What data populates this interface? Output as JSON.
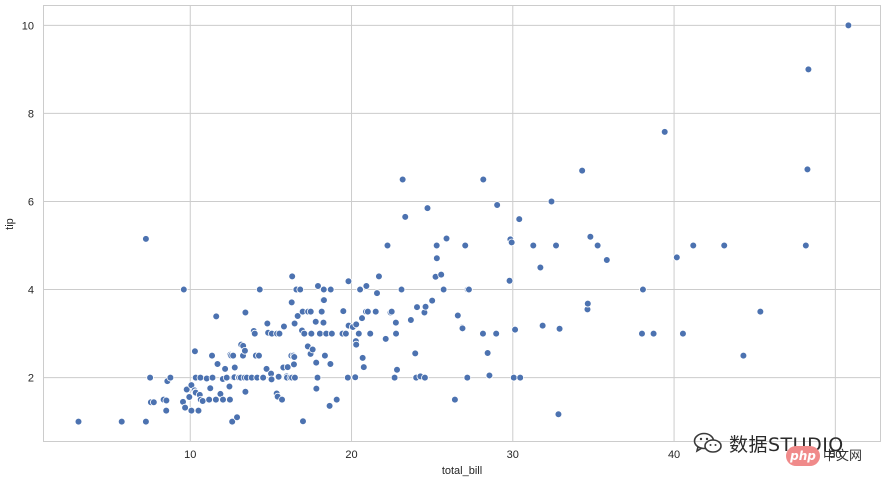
{
  "chart_data": {
    "type": "scatter",
    "title": "",
    "xlabel": "total_bill",
    "ylabel": "tip",
    "xlim": [
      0.9,
      52.8
    ],
    "ylim": [
      0.55,
      10.45
    ],
    "xticks": [
      10,
      20,
      30,
      40,
      50
    ],
    "yticks": [
      2,
      4,
      6,
      8,
      10
    ],
    "grid": true,
    "point_color": "#4c72b0",
    "series": [
      {
        "points": [
          [
            3.07,
            1.0
          ],
          [
            5.75,
            1.0
          ],
          [
            7.25,
            1.0
          ],
          [
            7.25,
            5.15
          ],
          [
            7.51,
            2.0
          ],
          [
            7.56,
            1.44
          ],
          [
            7.74,
            1.44
          ],
          [
            8.35,
            1.5
          ],
          [
            8.51,
            1.25
          ],
          [
            8.52,
            1.48
          ],
          [
            8.58,
            1.92
          ],
          [
            8.77,
            2.0
          ],
          [
            9.55,
            1.45
          ],
          [
            9.6,
            4.0
          ],
          [
            9.68,
            1.32
          ],
          [
            9.78,
            1.73
          ],
          [
            9.94,
            1.56
          ],
          [
            10.07,
            1.25
          ],
          [
            10.07,
            1.83
          ],
          [
            10.27,
            1.71
          ],
          [
            10.29,
            2.6
          ],
          [
            10.33,
            1.67
          ],
          [
            10.33,
            2.0
          ],
          [
            10.34,
            1.66
          ],
          [
            10.34,
            2.0
          ],
          [
            10.51,
            1.25
          ],
          [
            10.59,
            1.61
          ],
          [
            10.63,
            2.0
          ],
          [
            10.65,
            1.5
          ],
          [
            10.77,
            1.47
          ],
          [
            11.02,
            1.98
          ],
          [
            11.17,
            1.5
          ],
          [
            11.24,
            1.76
          ],
          [
            11.35,
            2.5
          ],
          [
            11.38,
            2.0
          ],
          [
            11.59,
            1.5
          ],
          [
            11.61,
            3.39
          ],
          [
            11.69,
            2.31
          ],
          [
            11.87,
            1.63
          ],
          [
            12.02,
            1.97
          ],
          [
            12.03,
            1.5
          ],
          [
            12.16,
            2.2
          ],
          [
            12.26,
            2.0
          ],
          [
            12.43,
            1.8
          ],
          [
            12.46,
            1.5
          ],
          [
            12.48,
            2.52
          ],
          [
            12.54,
            2.5
          ],
          [
            12.6,
            1.0
          ],
          [
            12.66,
            2.5
          ],
          [
            12.69,
            2.0
          ],
          [
            12.74,
            2.01
          ],
          [
            12.76,
            2.23
          ],
          [
            12.9,
            1.1
          ],
          [
            13.0,
            2.0
          ],
          [
            13.03,
            2.0
          ],
          [
            13.13,
            2.0
          ],
          [
            13.16,
            2.75
          ],
          [
            13.27,
            2.5
          ],
          [
            13.28,
            2.72
          ],
          [
            13.37,
            2.0
          ],
          [
            13.39,
            2.61
          ],
          [
            13.42,
            3.48
          ],
          [
            13.42,
            1.68
          ],
          [
            13.51,
            2.0
          ],
          [
            13.81,
            2.0
          ],
          [
            13.94,
            3.06
          ],
          [
            14.0,
            3.0
          ],
          [
            14.07,
            2.5
          ],
          [
            14.15,
            2.0
          ],
          [
            14.26,
            2.5
          ],
          [
            14.31,
            4.0
          ],
          [
            14.48,
            2.0
          ],
          [
            14.52,
            2.0
          ],
          [
            14.73,
            2.2
          ],
          [
            14.78,
            3.23
          ],
          [
            14.83,
            3.02
          ],
          [
            15.01,
            2.09
          ],
          [
            15.04,
            1.96
          ],
          [
            15.06,
            3.0
          ],
          [
            15.36,
            1.64
          ],
          [
            15.38,
            3.0
          ],
          [
            15.42,
            1.57
          ],
          [
            15.48,
            2.02
          ],
          [
            15.53,
            3.0
          ],
          [
            15.69,
            1.5
          ],
          [
            15.77,
            2.23
          ],
          [
            15.81,
            3.16
          ],
          [
            15.95,
            2.0
          ],
          [
            15.98,
            2.03
          ],
          [
            16.0,
            2.0
          ],
          [
            16.04,
            2.24
          ],
          [
            16.21,
            2.0
          ],
          [
            16.27,
            2.5
          ],
          [
            16.29,
            3.71
          ],
          [
            16.31,
            2.0
          ],
          [
            16.32,
            4.3
          ],
          [
            16.4,
            2.5
          ],
          [
            16.43,
            2.3
          ],
          [
            16.45,
            2.47
          ],
          [
            16.47,
            3.23
          ],
          [
            16.49,
            2.0
          ],
          [
            16.58,
            4.0
          ],
          [
            16.66,
            3.4
          ],
          [
            16.82,
            4.0
          ],
          [
            16.93,
            3.07
          ],
          [
            16.97,
            3.5
          ],
          [
            16.99,
            1.01
          ],
          [
            17.07,
            3.0
          ],
          [
            17.29,
            2.71
          ],
          [
            17.31,
            3.5
          ],
          [
            17.46,
            2.54
          ],
          [
            17.47,
            3.5
          ],
          [
            17.51,
            3.0
          ],
          [
            17.59,
            2.64
          ],
          [
            17.78,
            3.27
          ],
          [
            17.81,
            2.34
          ],
          [
            17.82,
            1.75
          ],
          [
            17.89,
            2.0
          ],
          [
            17.92,
            4.08
          ],
          [
            18.04,
            3.0
          ],
          [
            18.15,
            3.5
          ],
          [
            18.24,
            3.76
          ],
          [
            18.26,
            3.25
          ],
          [
            18.28,
            4.0
          ],
          [
            18.29,
            3.76
          ],
          [
            18.35,
            2.5
          ],
          [
            18.43,
            3.0
          ],
          [
            18.64,
            1.36
          ],
          [
            18.69,
            2.31
          ],
          [
            18.71,
            4.0
          ],
          [
            18.78,
            3.0
          ],
          [
            19.08,
            1.5
          ],
          [
            19.44,
            3.0
          ],
          [
            19.49,
            3.51
          ],
          [
            19.65,
            3.0
          ],
          [
            19.77,
            2.0
          ],
          [
            19.81,
            4.19
          ],
          [
            19.82,
            3.18
          ],
          [
            20.08,
            3.15
          ],
          [
            20.23,
            2.01
          ],
          [
            20.27,
            2.83
          ],
          [
            20.29,
            3.21
          ],
          [
            20.29,
            2.75
          ],
          [
            20.45,
            3.0
          ],
          [
            20.53,
            4.0
          ],
          [
            20.65,
            3.35
          ],
          [
            20.69,
            2.45
          ],
          [
            20.76,
            2.24
          ],
          [
            20.9,
            3.5
          ],
          [
            20.92,
            4.08
          ],
          [
            21.01,
            3.5
          ],
          [
            21.16,
            3.0
          ],
          [
            21.5,
            3.5
          ],
          [
            21.58,
            3.92
          ],
          [
            21.7,
            4.3
          ],
          [
            22.12,
            2.88
          ],
          [
            22.23,
            5.0
          ],
          [
            22.42,
            3.48
          ],
          [
            22.49,
            3.5
          ],
          [
            22.67,
            2.0
          ],
          [
            22.75,
            3.25
          ],
          [
            22.76,
            3.0
          ],
          [
            22.82,
            2.18
          ],
          [
            23.1,
            4.0
          ],
          [
            23.17,
            6.5
          ],
          [
            23.33,
            5.65
          ],
          [
            23.68,
            3.31
          ],
          [
            23.95,
            2.55
          ],
          [
            24.01,
            2.0
          ],
          [
            24.06,
            3.6
          ],
          [
            24.27,
            2.03
          ],
          [
            24.52,
            3.48
          ],
          [
            24.55,
            2.0
          ],
          [
            24.59,
            3.61
          ],
          [
            24.71,
            5.85
          ],
          [
            25.0,
            3.75
          ],
          [
            25.21,
            4.29
          ],
          [
            25.28,
            5.0
          ],
          [
            25.29,
            4.71
          ],
          [
            25.56,
            4.34
          ],
          [
            25.71,
            4.0
          ],
          [
            25.89,
            5.16
          ],
          [
            26.41,
            1.5
          ],
          [
            26.59,
            3.41
          ],
          [
            26.86,
            3.14
          ],
          [
            26.88,
            3.12
          ],
          [
            27.05,
            5.0
          ],
          [
            27.18,
            2.0
          ],
          [
            27.2,
            4.0
          ],
          [
            27.28,
            4.0
          ],
          [
            28.15,
            3.0
          ],
          [
            28.17,
            6.5
          ],
          [
            28.44,
            2.56
          ],
          [
            28.55,
            2.05
          ],
          [
            28.97,
            3.0
          ],
          [
            29.03,
            5.92
          ],
          [
            29.8,
            4.2
          ],
          [
            29.85,
            5.14
          ],
          [
            29.93,
            5.07
          ],
          [
            30.06,
            2.0
          ],
          [
            30.14,
            3.09
          ],
          [
            30.4,
            5.6
          ],
          [
            30.46,
            2.0
          ],
          [
            31.27,
            5.0
          ],
          [
            31.71,
            4.5
          ],
          [
            31.85,
            3.18
          ],
          [
            32.4,
            6.0
          ],
          [
            32.68,
            5.0
          ],
          [
            32.83,
            1.17
          ],
          [
            32.9,
            3.11
          ],
          [
            34.3,
            6.7
          ],
          [
            34.63,
            3.55
          ],
          [
            34.65,
            3.68
          ],
          [
            34.81,
            5.2
          ],
          [
            35.26,
            5.0
          ],
          [
            35.83,
            4.67
          ],
          [
            38.01,
            3.0
          ],
          [
            38.07,
            4.0
          ],
          [
            38.73,
            3.0
          ],
          [
            39.42,
            7.58
          ],
          [
            40.17,
            4.73
          ],
          [
            40.55,
            3.0
          ],
          [
            41.19,
            5.0
          ],
          [
            43.11,
            5.0
          ],
          [
            44.3,
            2.5
          ],
          [
            45.35,
            3.5
          ],
          [
            48.17,
            5.0
          ],
          [
            48.27,
            6.73
          ],
          [
            48.33,
            9.0
          ],
          [
            50.81,
            10.0
          ]
        ]
      }
    ]
  },
  "watermark": {
    "icon": "wechat-icon",
    "text": "数据STUDIO",
    "badge": "php",
    "site": "中文网"
  }
}
